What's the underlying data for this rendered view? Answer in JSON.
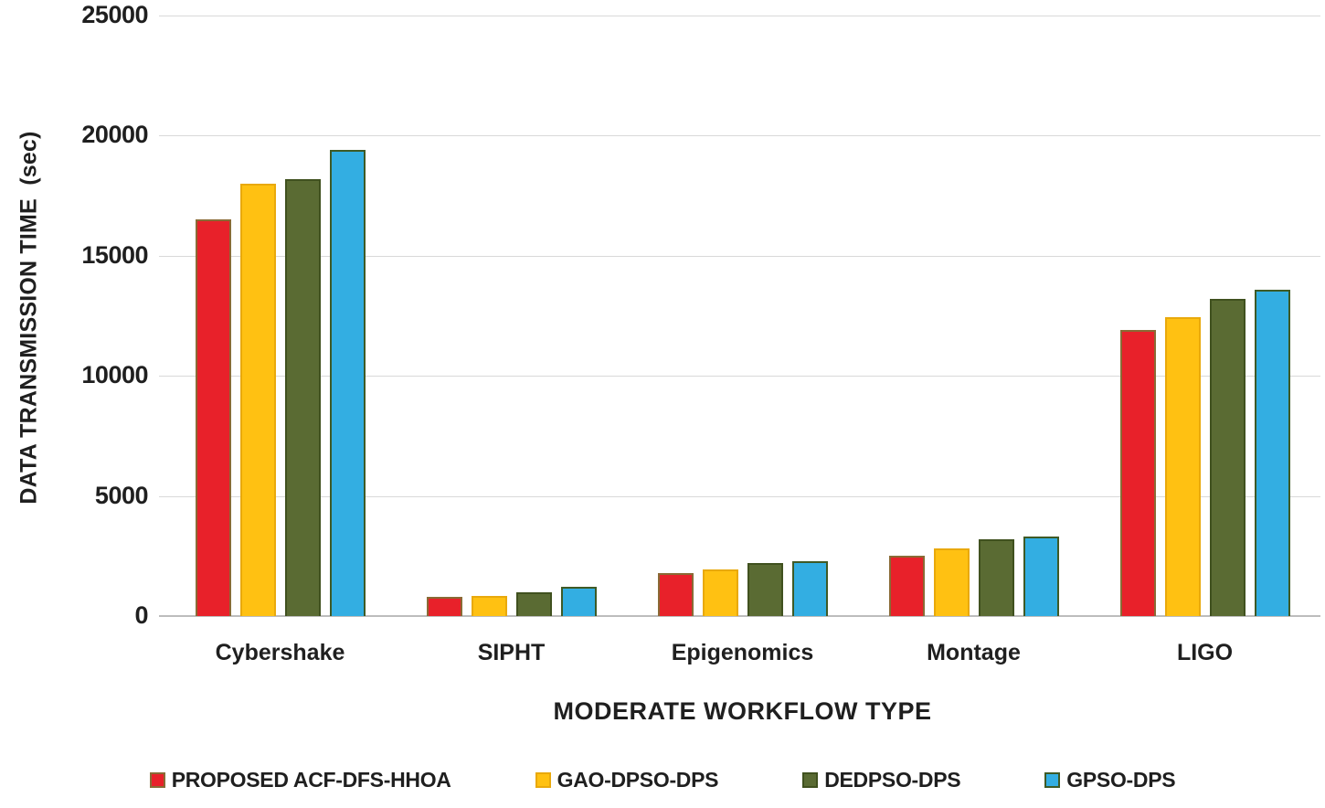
{
  "chart_data": {
    "type": "bar",
    "title": "",
    "xlabel": "MODERATE WORKFLOW TYPE",
    "ylabel": "DATA TRANSMISSION TIME  (sec)",
    "categories": [
      "Cybershake",
      "SIPHT",
      "Epigenomics",
      "Montage",
      "LIGO"
    ],
    "series": [
      {
        "name": "PROPOSED ACF-DFS-HHOA",
        "color": "#E8212A",
        "border_color": "#8A6A35",
        "values": [
          16500,
          800,
          1800,
          2500,
          11900
        ]
      },
      {
        "name": "GAO-DPSO-DPS",
        "color": "#FFC112",
        "border_color": "#E9A90C",
        "values": [
          18000,
          850,
          1950,
          2800,
          12450
        ]
      },
      {
        "name": "DEDPSO-DPS",
        "color": "#5A6B33",
        "border_color": "#40511F",
        "values": [
          18200,
          1000,
          2200,
          3200,
          13200
        ]
      },
      {
        "name": "GPSO-DPS",
        "color": "#33AEE2",
        "border_color": "#3E5A26",
        "values": [
          19400,
          1200,
          2300,
          3300,
          13600
        ]
      }
    ],
    "ylim": [
      0,
      25000
    ],
    "yticks": [
      0,
      5000,
      10000,
      15000,
      20000,
      25000
    ],
    "grid": true,
    "legend_position": "bottom"
  },
  "styles": {
    "grid_color": "#D9D9D9",
    "axis_line_color": "#BDBDBD",
    "text_color": "#1F1F1F",
    "background": "#FFFFFF"
  }
}
